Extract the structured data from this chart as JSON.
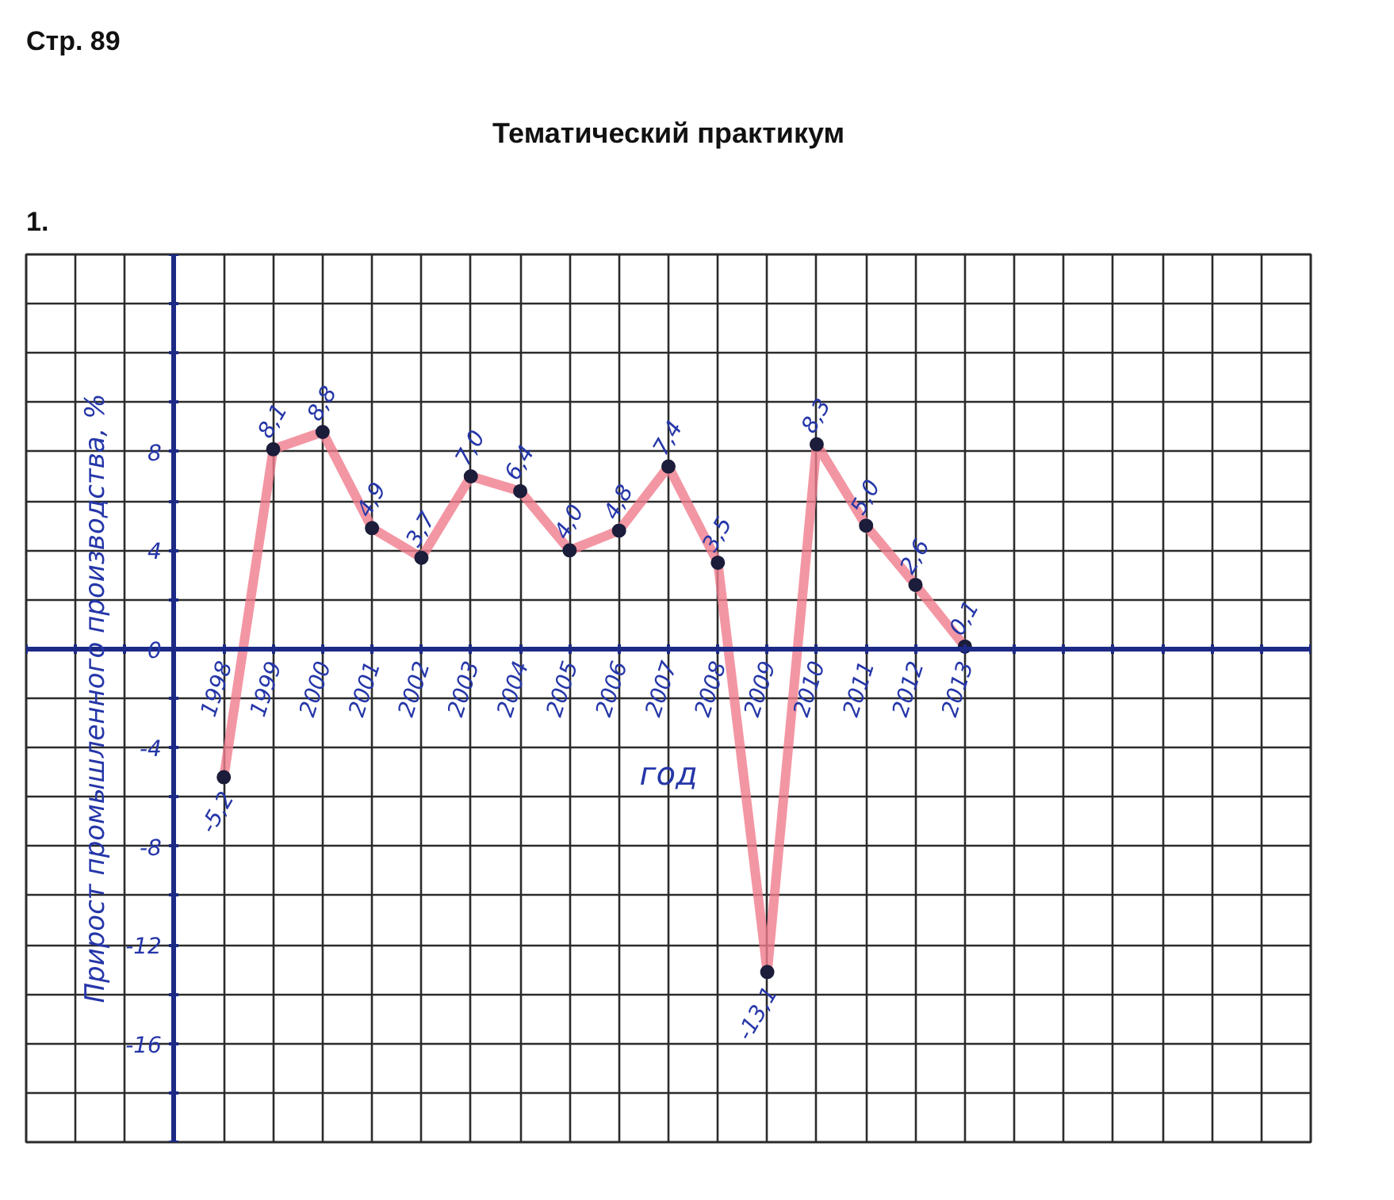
{
  "chart_data": {
    "type": "line",
    "title": "Тематический практикум",
    "xlabel": "год",
    "ylabel": "Прирост промышленного производства, %",
    "annotations": [
      "Стр. 89",
      "1."
    ],
    "x": [
      1998,
      1999,
      2000,
      2001,
      2002,
      2003,
      2004,
      2005,
      2006,
      2007,
      2008,
      2009,
      2010,
      2011,
      2012,
      2013
    ],
    "series": [
      {
        "color": "#f07c8c",
        "values": [
          -5.2,
          8.1,
          8.8,
          4.9,
          3.7,
          7.0,
          6.4,
          4.0,
          4.8,
          7.4,
          3.5,
          -13.1,
          8.3,
          5.0,
          2.6,
          0.1
        ],
        "value_labels": [
          "-5,2",
          "8,1",
          "8,8",
          "4,9",
          "3,7",
          "7,0",
          "6,4",
          "4,0",
          "4,8",
          "7,4",
          "3,5",
          "-13,1",
          "8,3",
          "5,0",
          "2,6",
          "0,1"
        ]
      }
    ],
    "xlim": [
      1994,
      2020
    ],
    "xticks": [
      {
        "value": 1994,
        "label": null
      },
      {
        "value": 1995,
        "label": null
      },
      {
        "value": 1996,
        "label": null
      },
      {
        "value": 1997,
        "label": null
      },
      1998,
      1999,
      2000,
      2001,
      2002,
      2003,
      2004,
      2005,
      2006,
      2007,
      2008,
      2009,
      2010,
      2011,
      2012,
      2013,
      {
        "value": 2014,
        "label": null
      },
      {
        "value": 2015,
        "label": null
      },
      {
        "value": 2016,
        "label": null
      },
      {
        "value": 2017,
        "label": null
      },
      {
        "value": 2018,
        "label": null
      },
      {
        "value": 2019,
        "label": null
      },
      {
        "value": 2020,
        "label": null
      }
    ],
    "ylim": [
      -20,
      16
    ],
    "yticks": [
      {
        "value": -20,
        "label": null
      },
      {
        "value": -18,
        "label": null
      },
      -16,
      {
        "value": -14,
        "label": null
      },
      -12,
      {
        "value": -10,
        "label": null
      },
      -8,
      {
        "value": -6,
        "label": null
      },
      -4,
      {
        "value": -2,
        "label": null
      },
      0,
      {
        "value": 2,
        "label": null
      },
      4,
      {
        "value": 6,
        "label": null
      },
      8,
      {
        "value": 10,
        "label": null
      },
      {
        "value": 12,
        "label": null
      },
      {
        "value": 14,
        "label": null
      },
      {
        "value": 16,
        "label": null
      }
    ],
    "grid": true,
    "marker": "circle",
    "line_style": "solid"
  }
}
